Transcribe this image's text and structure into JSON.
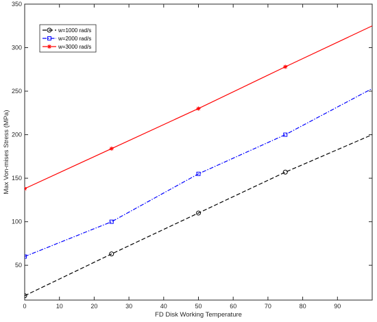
{
  "chart_data": {
    "type": "line",
    "title": "",
    "xlabel": "FD Disk Working Temperature",
    "ylabel": "Max Von-mises Stress (MPa)",
    "xlim": [
      0,
      100
    ],
    "ylim": [
      10,
      350
    ],
    "xticks": [
      0,
      10,
      20,
      30,
      40,
      50,
      60,
      70,
      80,
      90
    ],
    "yticks": [
      50,
      100,
      150,
      200,
      250,
      300,
      350
    ],
    "grid": false,
    "legend_position": "top-left",
    "series": [
      {
        "name": "w=1000 rad/s",
        "color": "#000000",
        "line_style": "dashed",
        "marker": "circle",
        "x": [
          0,
          25,
          50,
          75,
          100
        ],
        "y": [
          15,
          63,
          110,
          157,
          200
        ]
      },
      {
        "name": "w=2000 rad/s",
        "color": "#0000ff",
        "line_style": "dash-dot",
        "marker": "square",
        "x": [
          0,
          25,
          50,
          75,
          100
        ],
        "y": [
          60,
          100,
          155,
          200,
          253
        ]
      },
      {
        "name": "w=3000 rad/s",
        "color": "#ff0000",
        "line_style": "solid",
        "marker": "asterisk",
        "x": [
          0,
          25,
          50,
          75,
          100
        ],
        "y": [
          138,
          184,
          230,
          278,
          325
        ]
      }
    ]
  }
}
